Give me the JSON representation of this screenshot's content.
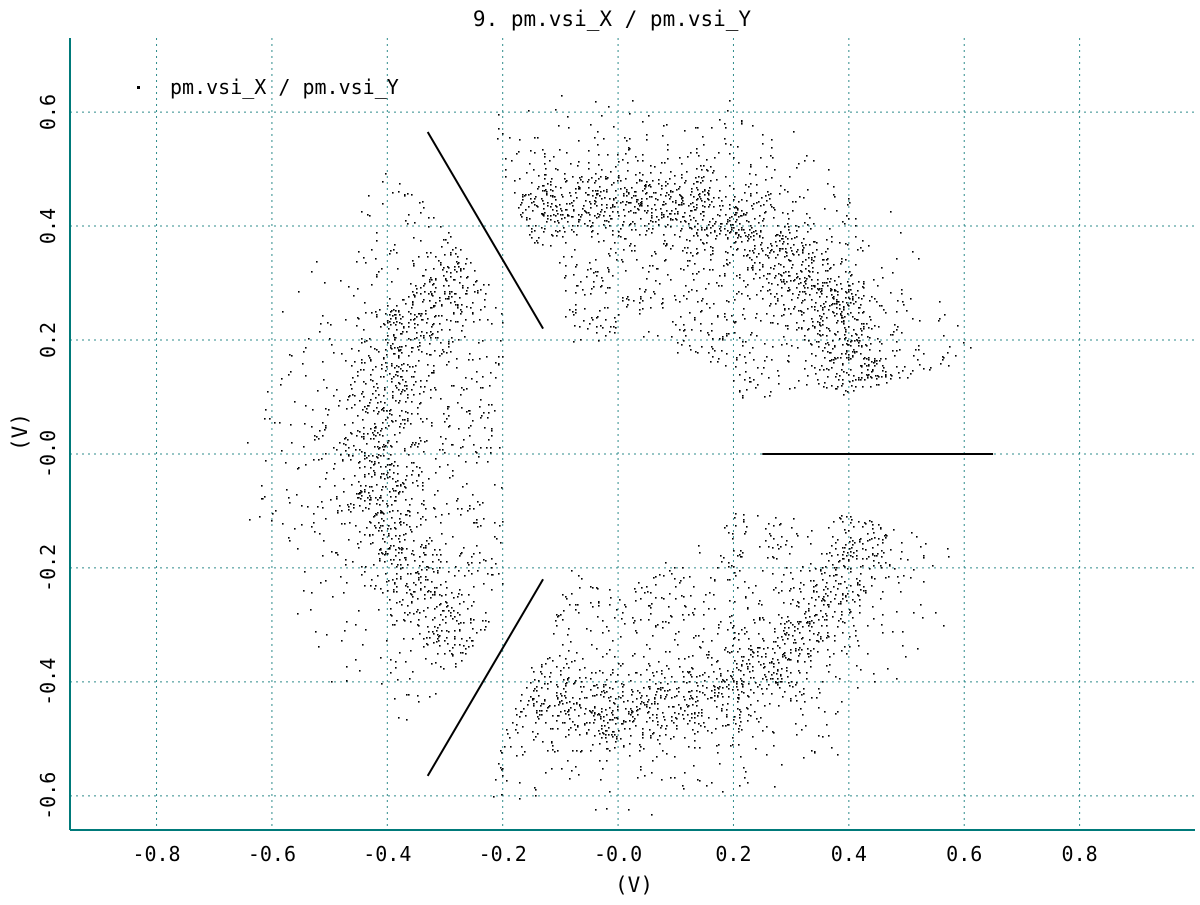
{
  "chart_data": {
    "type": "scatter",
    "title": "9. pm.vsi_X / pm.vsi_Y",
    "xlabel": "(V)",
    "ylabel": "(V)",
    "xlim": [
      -0.95,
      1.0
    ],
    "ylim": [
      -0.66,
      0.73
    ],
    "x_ticks": [
      -0.8,
      -0.6,
      -0.4,
      -0.2,
      0.0,
      0.2,
      0.4,
      0.6,
      0.8
    ],
    "x_tick_labels": [
      "-0.8",
      "-0.6",
      "-0.4",
      "-0.2",
      "-0.0",
      "0.2",
      "0.4",
      "0.6",
      "0.8"
    ],
    "y_ticks": [
      -0.6,
      -0.4,
      -0.2,
      0.0,
      0.2,
      0.4,
      0.6
    ],
    "y_tick_labels": [
      "-0.6",
      "-0.4",
      "-0.2",
      "-0.0",
      "0.2",
      "0.4",
      "0.6"
    ],
    "grid": true,
    "legend": {
      "position": "top-left",
      "entries": [
        "pm.vsi_X / pm.vsi_Y"
      ]
    },
    "colors": {
      "axis": "#007a7a",
      "grid": "#2e8b8b",
      "points": "#000000"
    },
    "series": [
      {
        "name": "pm.vsi_X / pm.vsi_Y",
        "marker": "point",
        "clusters": [
          {
            "shape": "annulus-sector",
            "center": [
              0.0,
              0.0
            ],
            "r_inner": 0.22,
            "r_outer": 0.62,
            "dense_radius": 0.45,
            "angle_deg": [
              15,
              112
            ],
            "min_y": 0.1
          },
          {
            "shape": "annulus-sector",
            "center": [
              0.0,
              0.0
            ],
            "r_inner": 0.22,
            "r_outer": 0.62,
            "dense_radius": 0.45,
            "angle_deg": [
              248,
              345
            ],
            "max_y": -0.1
          },
          {
            "shape": "annulus-sector",
            "center": [
              0.0,
              0.0
            ],
            "r_inner": 0.22,
            "r_outer": 0.62,
            "dense_radius": 0.42,
            "angle_deg": [
              127,
              233
            ],
            "max_x": -0.2
          }
        ],
        "segments": [
          {
            "from": [
              0.25,
              0.0
            ],
            "to": [
              0.65,
              0.0
            ]
          },
          {
            "from": [
              -0.33,
              0.565
            ],
            "to": [
              -0.13,
              0.22
            ]
          },
          {
            "from": [
              -0.33,
              -0.565
            ],
            "to": [
              -0.13,
              -0.22
            ]
          }
        ]
      }
    ]
  }
}
